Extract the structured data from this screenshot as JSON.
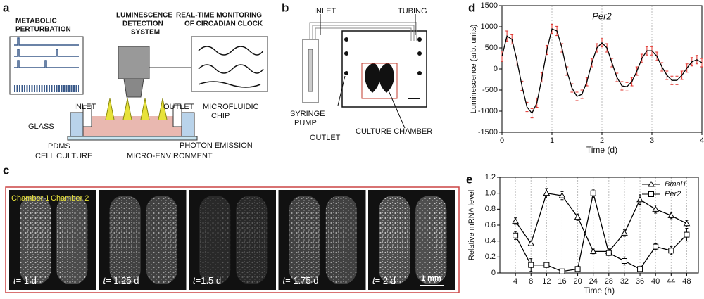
{
  "panels": {
    "a": {
      "label": "a",
      "perturbation": [
        "METABOLIC",
        "PERTURBATION"
      ],
      "detection": [
        "LUMINESCENCE",
        "DETECTION",
        "SYSTEM"
      ],
      "monitoring": [
        "REAL-TIME MONITORING",
        "OF CIRCADIAN CLOCK"
      ],
      "inlet": "INLET",
      "outlet": "OUTLET",
      "chip": [
        "MICROFLUIDIC",
        "CHIP"
      ],
      "glass": "GLASS",
      "pdms": "PDMS",
      "cell_culture": "CELL CULTURE",
      "photon": "PHOTON EMISSION",
      "micro_env": "MICRO-ENVIRONMENT"
    },
    "b": {
      "label": "b",
      "inlet": "INLET",
      "tubing": "TUBING",
      "pump": [
        "SYRINGE",
        "PUMP"
      ],
      "outlet": "OUTLET",
      "chamber": "CULTURE CHAMBER"
    },
    "c": {
      "label": "c",
      "chamber1": "Chamber 1",
      "chamber2": "Chamber 2",
      "time_symbol": "t",
      "frames": [
        "= 1 d",
        "= 1.25 d",
        "=1.5 d",
        "= 1.75 d",
        "= 2 d"
      ],
      "scale": "1 mm"
    }
  },
  "chart_data": [
    {
      "type": "line",
      "label": "d",
      "annotation": "Per2",
      "x_label": "Time (d)",
      "y_label": "Luminescence (arb. units)",
      "x": [
        0,
        0.1,
        0.2,
        0.3,
        0.4,
        0.5,
        0.6,
        0.7,
        0.8,
        0.9,
        1,
        1.1,
        1.2,
        1.3,
        1.4,
        1.5,
        1.6,
        1.7,
        1.8,
        1.9,
        2,
        2.1,
        2.2,
        2.3,
        2.4,
        2.5,
        2.6,
        2.7,
        2.8,
        2.9,
        3,
        3.1,
        3.2,
        3.3,
        3.4,
        3.5,
        3.6,
        3.7,
        3.8,
        3.9,
        4
      ],
      "series": [
        {
          "color": "#000000",
          "error_color": "#e0302a",
          "values": [
            300,
            780,
            700,
            200,
            -400,
            -900,
            -1050,
            -800,
            -200,
            450,
            950,
            900,
            500,
            -50,
            -450,
            -650,
            -600,
            -300,
            150,
            500,
            620,
            500,
            150,
            -200,
            -400,
            -420,
            -300,
            -50,
            250,
            430,
            430,
            300,
            50,
            -150,
            -270,
            -270,
            -150,
            20,
            170,
            220,
            150
          ],
          "errors": [
            120,
            120,
            110,
            110,
            110,
            110,
            110,
            110,
            110,
            110,
            110,
            110,
            100,
            100,
            100,
            100,
            100,
            100,
            100,
            100,
            100,
            100,
            100,
            100,
            100,
            100,
            100,
            100,
            100,
            100,
            100,
            100,
            100,
            100,
            100,
            100,
            100,
            100,
            100,
            100,
            100
          ]
        }
      ],
      "xlim": [
        0,
        4
      ],
      "xticks": [
        0,
        1,
        2,
        3,
        4
      ],
      "ylim": [
        -1500,
        1500
      ],
      "yticks": [
        -1500,
        -1000,
        -500,
        0,
        500,
        1000,
        1500
      ],
      "grid": true
    },
    {
      "type": "line",
      "label": "e",
      "x_label": "Time (h)",
      "y_label": "Relative mRNA level",
      "x": [
        4,
        8,
        12,
        16,
        20,
        24,
        28,
        32,
        36,
        40,
        44,
        48
      ],
      "series": [
        {
          "name": "Bmal1",
          "marker": "triangle",
          "color": "#000000",
          "values": [
            0.65,
            0.37,
            1.0,
            0.97,
            0.7,
            0.27,
            0.27,
            0.5,
            0.92,
            0.8,
            0.72,
            0.62
          ],
          "errors": [
            0.04,
            0.03,
            0.06,
            0.05,
            0.04,
            0.03,
            0.03,
            0.04,
            0.06,
            0.05,
            0.04,
            0.04
          ]
        },
        {
          "name": "Per2",
          "marker": "square",
          "color": "#000000",
          "values": [
            0.47,
            0.1,
            0.1,
            0.02,
            0.05,
            1.0,
            0.25,
            0.15,
            0.05,
            0.33,
            0.28,
            0.48
          ],
          "errors": [
            0.05,
            0.08,
            0.03,
            0.02,
            0.02,
            0.05,
            0.03,
            0.05,
            0.02,
            0.04,
            0.05,
            0.08
          ]
        }
      ],
      "xlim": [
        0,
        51
      ],
      "xticks": [
        4,
        8,
        12,
        16,
        20,
        24,
        28,
        32,
        36,
        40,
        44,
        48
      ],
      "ylim": [
        0,
        1.2
      ],
      "yticks": [
        0,
        0.2,
        0.4,
        0.6,
        0.8,
        {
          "value": 1,
          "label": "1.0"
        },
        1.2
      ],
      "grid": true,
      "legend": "upper right"
    }
  ]
}
